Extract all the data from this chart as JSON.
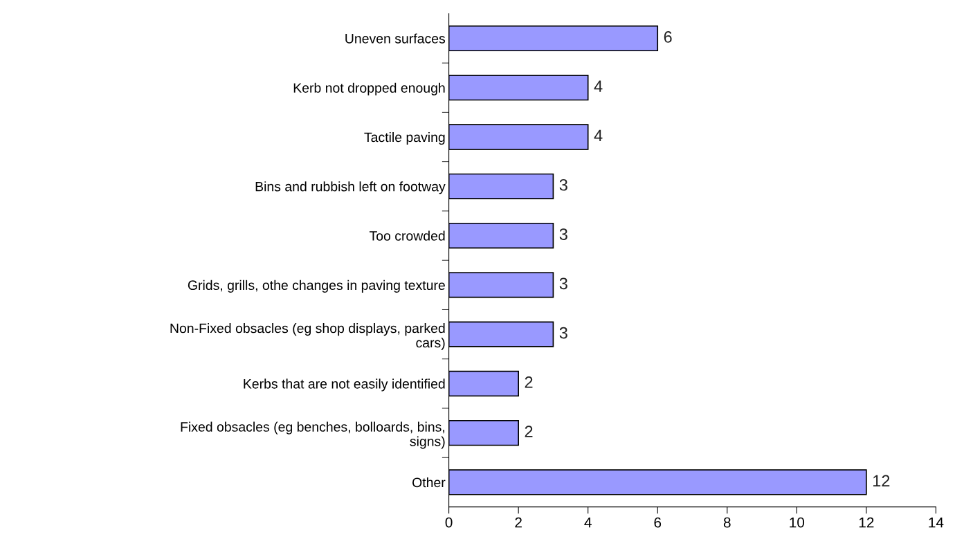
{
  "chart_data": {
    "type": "bar",
    "orientation": "horizontal",
    "categories": [
      "Uneven surfaces",
      "Kerb not dropped enough",
      "Tactile paving",
      "Bins and rubbish left on footway",
      "Too crowded",
      "Grids, grills, othe changes in paving texture",
      "Non-Fixed obsacles (eg shop displays, parked\ncars)",
      "Kerbs that are not easily identified",
      "Fixed obsacles (eg benches, bolloards, bins,\nsigns)",
      "Other"
    ],
    "values": [
      6,
      4,
      4,
      3,
      3,
      3,
      3,
      2,
      2,
      12
    ],
    "color": "#9999ff",
    "xlim": [
      0,
      14
    ],
    "xticks": [
      0,
      2,
      4,
      6,
      8,
      10,
      12,
      14
    ],
    "data_labels": true,
    "grid": false,
    "legend": false
  }
}
